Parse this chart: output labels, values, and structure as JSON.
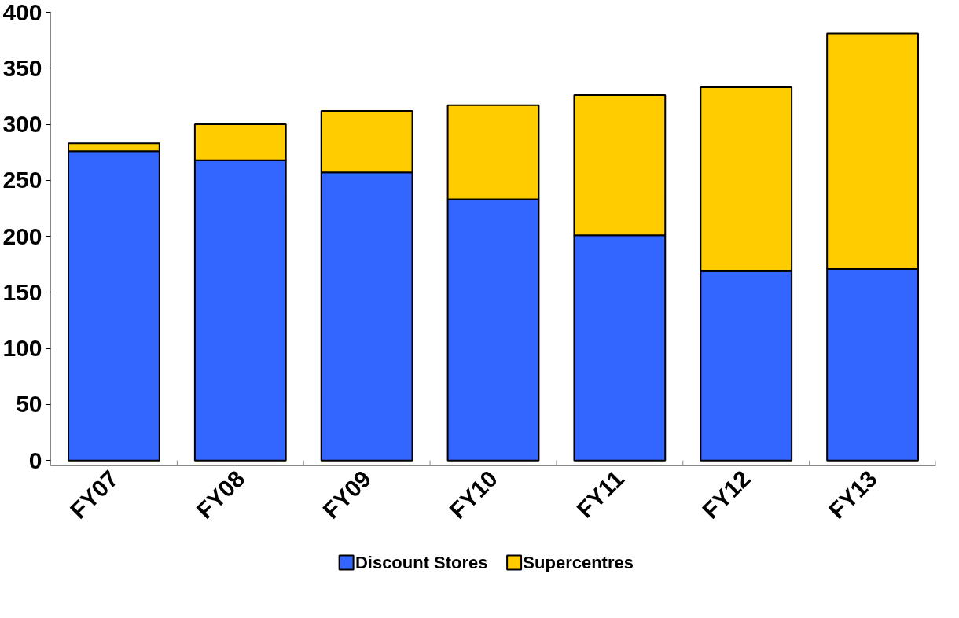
{
  "chart_data": {
    "type": "bar",
    "stacked": true,
    "categories": [
      "FY07",
      "FY08",
      "FY09",
      "FY10",
      "FY11",
      "FY12",
      "FY13"
    ],
    "series": [
      {
        "name": "Discount Stores",
        "color": "#3366ff",
        "values": [
          276,
          268,
          257,
          233,
          201,
          169,
          171
        ]
      },
      {
        "name": "Supercentres",
        "color": "#ffcc00",
        "values": [
          7,
          32,
          55,
          84,
          125,
          164,
          210
        ]
      }
    ],
    "ylim": [
      0,
      400
    ],
    "yticks": [
      0,
      50,
      100,
      150,
      200,
      250,
      300,
      350,
      400
    ],
    "grid": false,
    "legend": "bottom"
  }
}
